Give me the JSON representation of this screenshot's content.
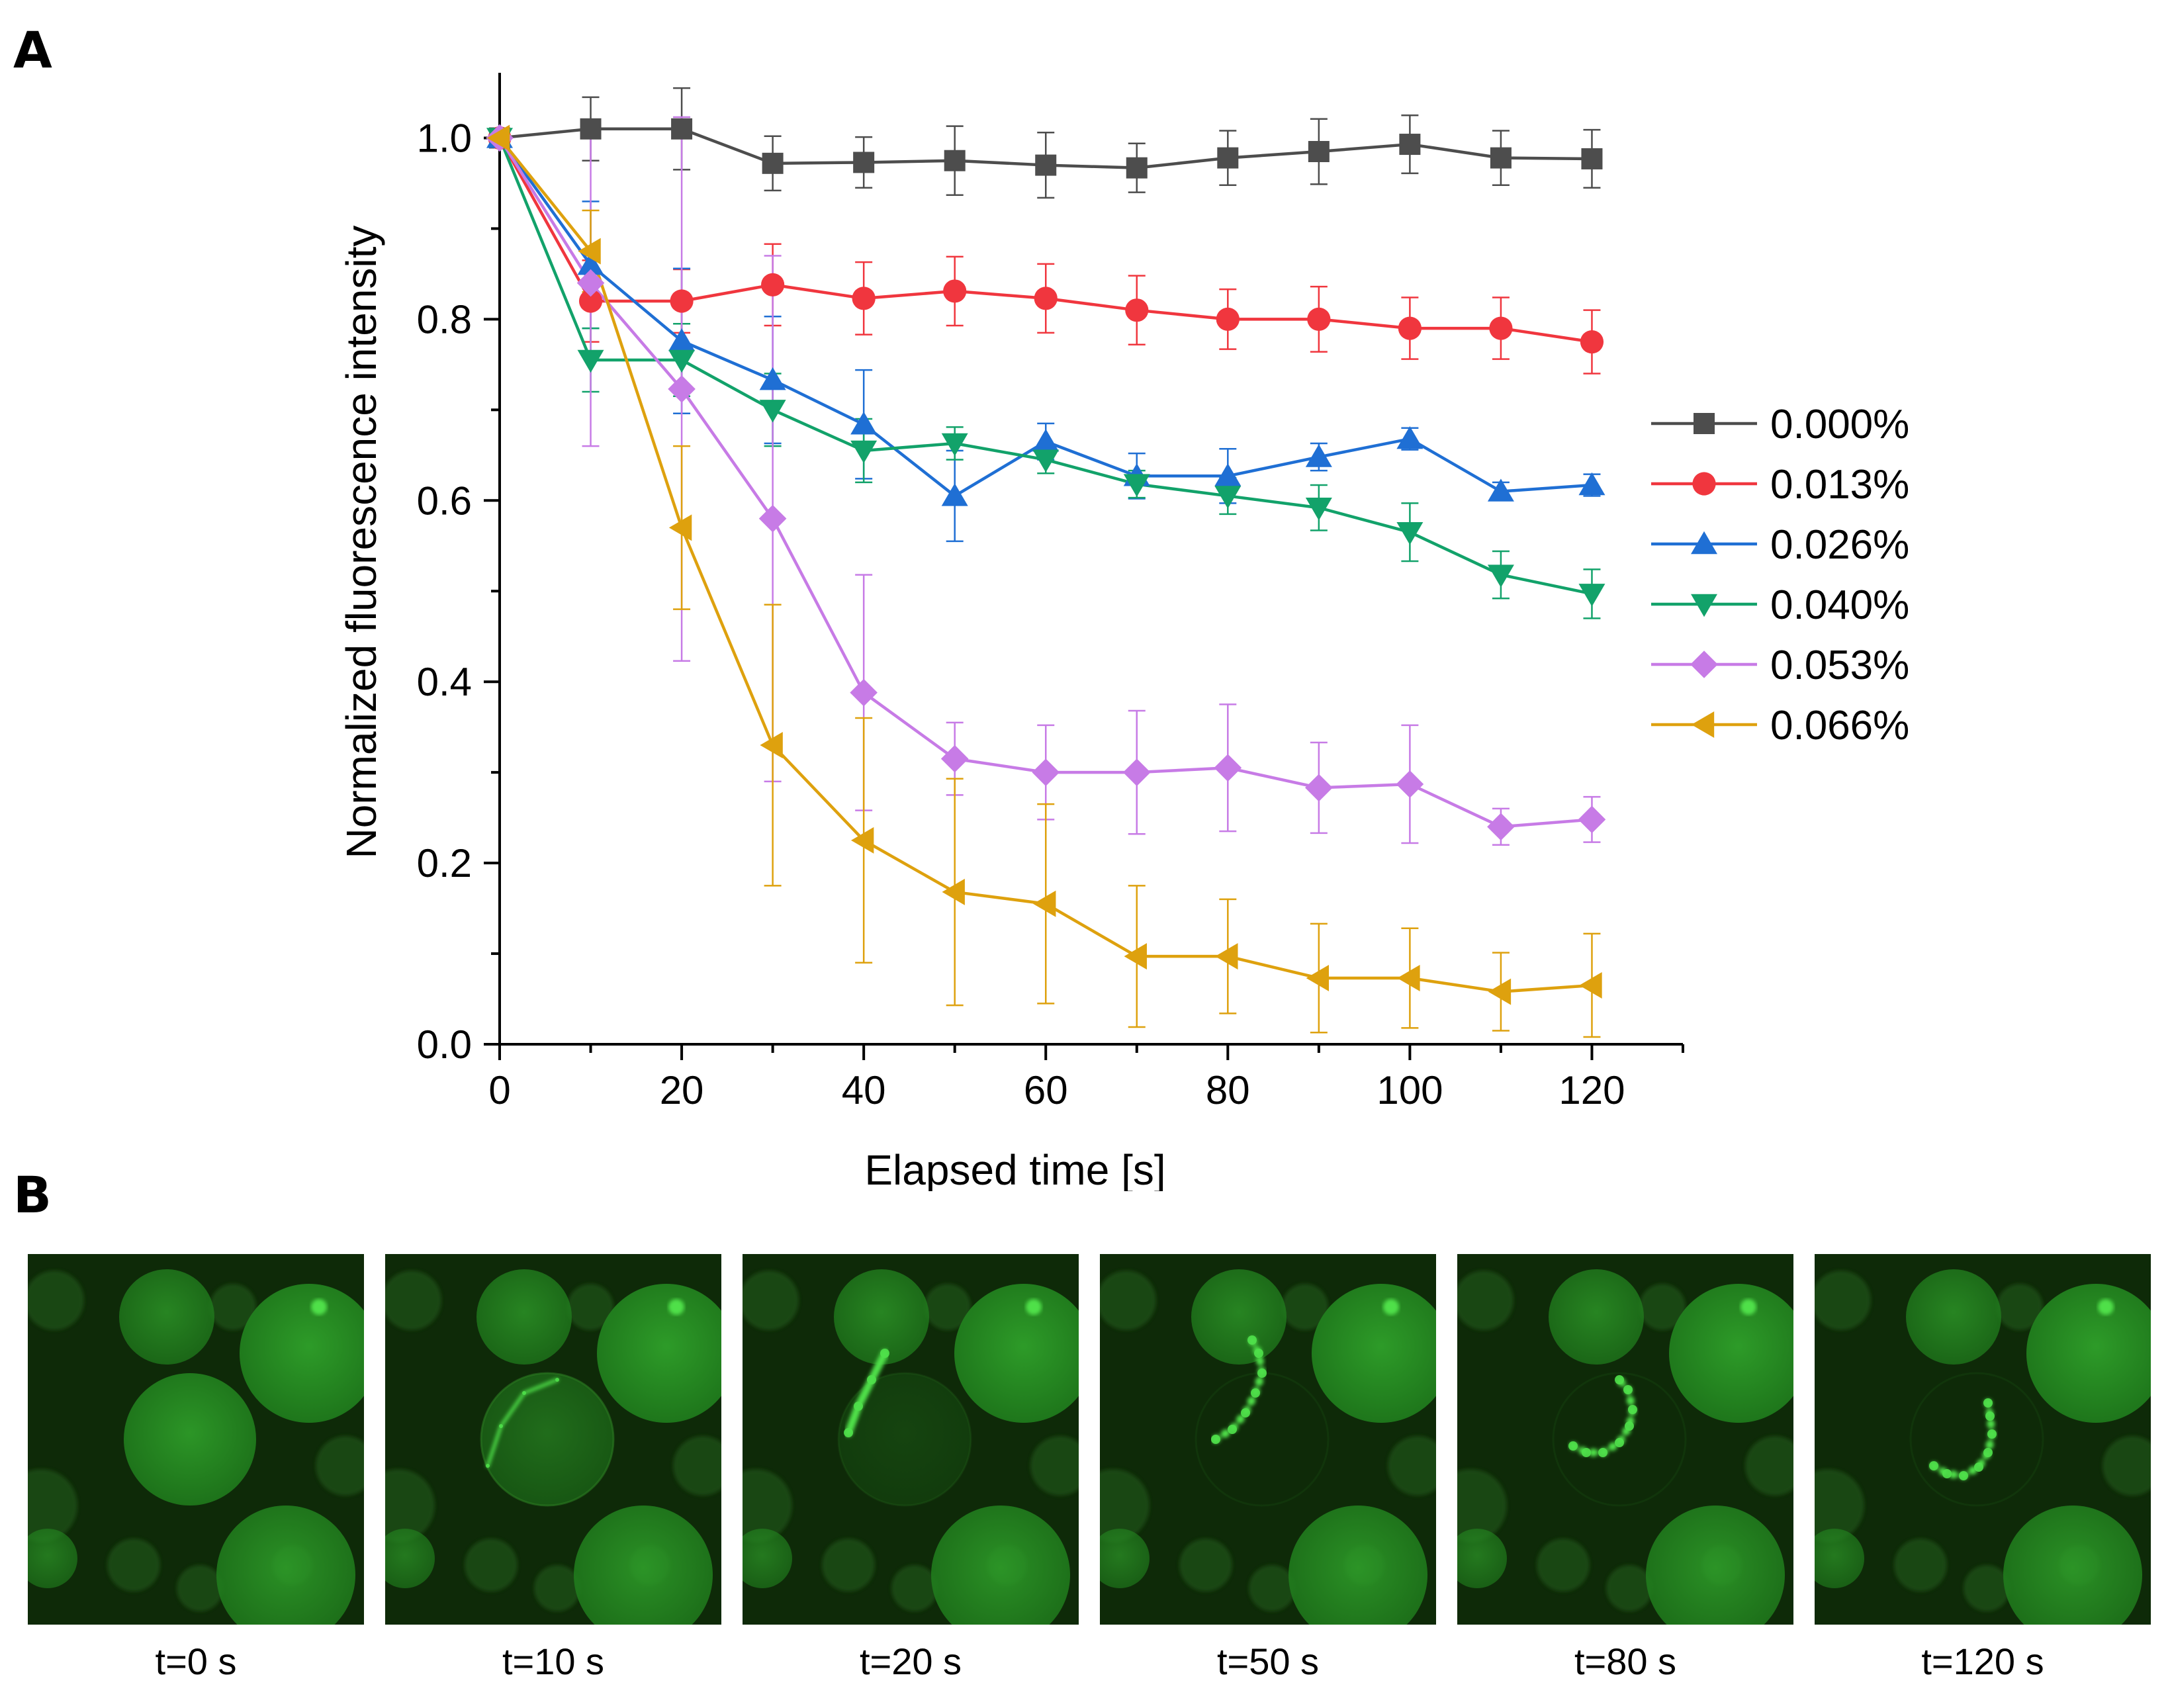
{
  "panels": {
    "a_label": "A",
    "b_label": "B"
  },
  "chart_data": {
    "type": "line",
    "title": "",
    "xlabel": "Elapsed time [s]",
    "ylabel": "Normalized fluorescence intensity",
    "xlim": [
      0,
      130
    ],
    "ylim": [
      0,
      1.05
    ],
    "xticks": [
      0,
      20,
      40,
      60,
      80,
      100,
      120
    ],
    "xtick_labels": [
      "0",
      "20",
      "40",
      "60",
      "80",
      "100",
      "120"
    ],
    "yticks": [
      0.0,
      0.2,
      0.4,
      0.6,
      0.8,
      1.0
    ],
    "ytick_labels": [
      "0.0",
      "0.2",
      "0.4",
      "0.6",
      "0.8",
      "1.0"
    ],
    "grid": false,
    "legend_position": "right",
    "x": [
      0,
      10,
      20,
      30,
      40,
      50,
      60,
      70,
      80,
      90,
      100,
      110,
      120
    ],
    "series": [
      {
        "name": "0.000%",
        "color": "#4d4d4d",
        "marker": "square",
        "values": [
          1.0,
          1.01,
          1.01,
          0.972,
          0.973,
          0.975,
          0.97,
          0.967,
          0.978,
          0.985,
          0.993,
          0.978,
          0.977
        ],
        "errors": [
          0.0,
          0.035,
          0.045,
          0.03,
          0.028,
          0.038,
          0.036,
          0.027,
          0.03,
          0.036,
          0.032,
          0.03,
          0.032
        ]
      },
      {
        "name": "0.013%",
        "color": "#f0363e",
        "marker": "circle",
        "values": [
          1.0,
          0.82,
          0.82,
          0.838,
          0.823,
          0.831,
          0.823,
          0.81,
          0.8,
          0.8,
          0.79,
          0.79,
          0.775
        ],
        "errors": [
          0.0,
          0.045,
          0.035,
          0.045,
          0.04,
          0.038,
          0.038,
          0.038,
          0.033,
          0.036,
          0.034,
          0.034,
          0.035
        ]
      },
      {
        "name": "0.026%",
        "color": "#1f6fd4",
        "marker": "triangle-up",
        "values": [
          1.0,
          0.86,
          0.776,
          0.733,
          0.684,
          0.605,
          0.665,
          0.627,
          0.627,
          0.648,
          0.668,
          0.61,
          0.617
        ],
        "errors": [
          0.0,
          0.07,
          0.08,
          0.07,
          0.06,
          0.05,
          0.02,
          0.025,
          0.03,
          0.015,
          0.012,
          0.01,
          0.012
        ]
      },
      {
        "name": "0.040%",
        "color": "#12a26a",
        "marker": "triangle-down",
        "values": [
          1.0,
          0.755,
          0.755,
          0.7,
          0.655,
          0.663,
          0.645,
          0.618,
          0.605,
          0.592,
          0.565,
          0.518,
          0.497
        ],
        "errors": [
          0.0,
          0.035,
          0.04,
          0.04,
          0.035,
          0.018,
          0.015,
          0.015,
          0.02,
          0.025,
          0.032,
          0.026,
          0.027
        ]
      },
      {
        "name": "0.053%",
        "color": "#c77be6",
        "marker": "diamond",
        "values": [
          1.0,
          0.84,
          0.723,
          0.58,
          0.388,
          0.315,
          0.3,
          0.3,
          0.305,
          0.283,
          0.287,
          0.24,
          0.248
        ],
        "errors": [
          0.0,
          0.18,
          0.3,
          0.29,
          0.13,
          0.04,
          0.052,
          0.068,
          0.07,
          0.05,
          0.065,
          0.02,
          0.025
        ]
      },
      {
        "name": "0.066%",
        "color": "#dea10e",
        "marker": "triangle-left",
        "values": [
          1.0,
          0.875,
          0.57,
          0.33,
          0.225,
          0.168,
          0.155,
          0.097,
          0.097,
          0.073,
          0.073,
          0.058,
          0.065
        ],
        "errors": [
          0.0,
          0.045,
          0.09,
          0.155,
          0.135,
          0.125,
          0.11,
          0.078,
          0.063,
          0.06,
          0.055,
          0.043,
          0.057
        ]
      }
    ]
  },
  "micrographs": [
    {
      "caption": "t=0 s",
      "time": 0
    },
    {
      "caption": "t=10 s",
      "time": 10
    },
    {
      "caption": "t=20 s",
      "time": 20
    },
    {
      "caption": "t=50 s",
      "time": 50
    },
    {
      "caption": "t=80 s",
      "time": 80
    },
    {
      "caption": "t=120 s",
      "time": 120
    }
  ],
  "colors": {
    "micro_bg": "#0e2a08",
    "micro_cell": "#2fa12a",
    "micro_bright": "#4fe04a",
    "axis": "#000000"
  }
}
